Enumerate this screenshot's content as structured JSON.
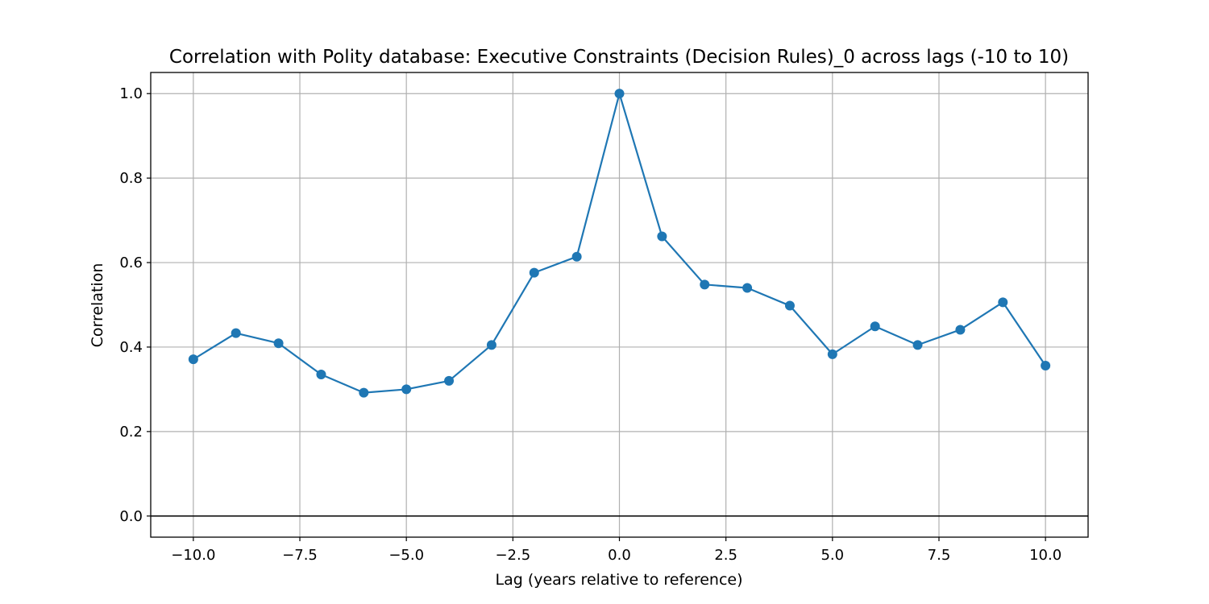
{
  "chart_data": {
    "type": "line",
    "title": "Correlation with Polity database: Executive Constraints (Decision Rules)_0 across lags (-10 to 10)",
    "xlabel": "Lag (years relative to reference)",
    "ylabel": "Correlation",
    "xlim": [
      -11,
      11
    ],
    "ylim": [
      -0.05,
      1.05
    ],
    "x_ticks": [
      -10.0,
      -7.5,
      -5.0,
      -2.5,
      0.0,
      2.5,
      5.0,
      7.5,
      10.0
    ],
    "x_tick_labels": [
      "−10.0",
      "−7.5",
      "−5.0",
      "−2.5",
      "0.0",
      "2.5",
      "5.0",
      "7.5",
      "10.0"
    ],
    "y_ticks": [
      0.0,
      0.2,
      0.4,
      0.6,
      0.8,
      1.0
    ],
    "y_tick_labels": [
      "0.0",
      "0.2",
      "0.4",
      "0.6",
      "0.8",
      "1.0"
    ],
    "grid": true,
    "reference_line_y": 0,
    "series": [
      {
        "color": "#1f77b4",
        "marker": "circle",
        "x": [
          -10,
          -9,
          -8,
          -7,
          -6,
          -5,
          -4,
          -3,
          -2,
          -1,
          0,
          1,
          2,
          3,
          4,
          5,
          6,
          7,
          8,
          9,
          10
        ],
        "y": [
          0.371,
          0.433,
          0.409,
          0.335,
          0.292,
          0.3,
          0.32,
          0.405,
          0.576,
          0.614,
          1.0,
          0.662,
          0.548,
          0.54,
          0.498,
          0.383,
          0.449,
          0.405,
          0.441,
          0.506,
          0.356
        ]
      }
    ]
  }
}
